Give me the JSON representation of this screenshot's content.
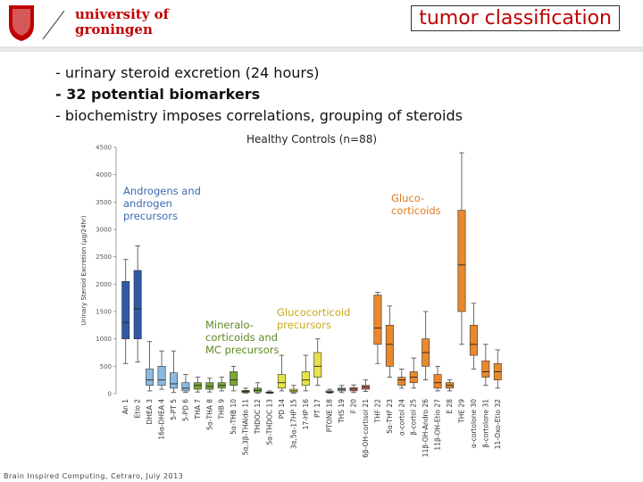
{
  "header": {
    "logo": [
      "university of",
      "groningen"
    ],
    "title": "tumor classification"
  },
  "bullets": [
    "- urinary steroid excretion  (24 hours)",
    "- 32 potential biomarkers",
    "- biochemistry imposes correlations, grouping of steroids"
  ],
  "footer": "Brain Inspired Computing, Cetraro, July 2013",
  "chart_data": {
    "type": "box",
    "title": "Healthy Controls (n=88)",
    "ylabel": "Urinary Steroid Excretion (µg/24hr)",
    "categories": [
      "An 1",
      "Etio 2",
      "DHEA 3",
      "16α-DHEA 4",
      "5-PT 5",
      "5-PD 6",
      "THA 7",
      "5α-THA 8",
      "THB 9",
      "5α-THB 10",
      "5α,3β-THAldo 11",
      "THDOC 12",
      "5α-THDOC 13",
      "PD 14",
      "3α,5α-17HP 15",
      "17-HP 16",
      "PT 17",
      "PTONE 18",
      "THS 19",
      "F 20",
      "6β-OH-cortisol 21",
      "THF 22",
      "5α-THF 23",
      "α-cortol 24",
      "β-cortol 25",
      "11β-OH-Andro 26",
      "11β-OH-Etio 27",
      "E 28",
      "THE 29",
      "α-cortolone 30",
      "β-cortolone 31",
      "11-Oxo-Etio 32"
    ],
    "min": [
      550,
      580,
      50,
      80,
      20,
      20,
      30,
      30,
      50,
      50,
      10,
      10,
      5,
      50,
      10,
      50,
      150,
      10,
      20,
      20,
      40,
      550,
      300,
      100,
      100,
      250,
      50,
      50,
      900,
      450,
      150,
      100
    ],
    "q1": [
      1000,
      1000,
      150,
      150,
      100,
      50,
      80,
      80,
      100,
      150,
      20,
      30,
      10,
      100,
      30,
      150,
      300,
      20,
      50,
      50,
      80,
      900,
      500,
      150,
      200,
      500,
      100,
      100,
      1500,
      700,
      300,
      250
    ],
    "median": [
      1300,
      1550,
      250,
      250,
      180,
      100,
      150,
      130,
      150,
      250,
      40,
      60,
      20,
      200,
      50,
      250,
      500,
      30,
      80,
      80,
      120,
      1200,
      900,
      250,
      300,
      750,
      200,
      150,
      2350,
      900,
      400,
      400
    ],
    "q3": [
      2050,
      2250,
      450,
      500,
      380,
      200,
      200,
      200,
      200,
      400,
      60,
      100,
      30,
      350,
      80,
      400,
      750,
      50,
      100,
      110,
      150,
      1800,
      1250,
      300,
      400,
      1000,
      350,
      200,
      3350,
      1250,
      600,
      550
    ],
    "max": [
      2450,
      2700,
      950,
      780,
      780,
      350,
      300,
      280,
      300,
      500,
      100,
      200,
      50,
      700,
      150,
      700,
      1000,
      80,
      150,
      160,
      250,
      1850,
      1600,
      450,
      650,
      1500,
      500,
      250,
      4400,
      1650,
      900,
      800
    ],
    "colors": [
      "#2f5aa3",
      "#2f5aa3",
      "#8cb9e0",
      "#8cb9e0",
      "#8cb9e0",
      "#8cb9e0",
      "#78a832",
      "#78a832",
      "#78a832",
      "#78a832",
      "#78a832",
      "#78a832",
      "#78a832",
      "#e6e24a",
      "#e6e24a",
      "#e6e24a",
      "#e6e24a",
      "#a0a0a0",
      "#a0a0a0",
      "#c86a4a",
      "#c86a4a",
      "#e8892e",
      "#e8892e",
      "#e8892e",
      "#e8892e",
      "#e8892e",
      "#e8892e",
      "#e8892e",
      "#e8892e",
      "#e8892e",
      "#e8892e",
      "#e8892e"
    ],
    "ylim": [
      0,
      4500
    ],
    "yticks": [
      0,
      500,
      1000,
      1500,
      2000,
      2500,
      3000,
      3500,
      4000,
      4500
    ],
    "annotations": [
      {
        "lines": [
          "Androgens and",
          "androgen",
          "precursors"
        ],
        "color": "#3a6ab0"
      },
      {
        "lines": [
          "Mineralo-",
          "corticoids and",
          "MC precursors"
        ],
        "color": "#5c8a22"
      },
      {
        "lines": [
          "Glucocorticoid",
          "precursors"
        ],
        "color": "#c9a81a"
      },
      {
        "lines": [
          "Gluco-",
          "corticoids"
        ],
        "color": "#e07a20"
      }
    ]
  }
}
